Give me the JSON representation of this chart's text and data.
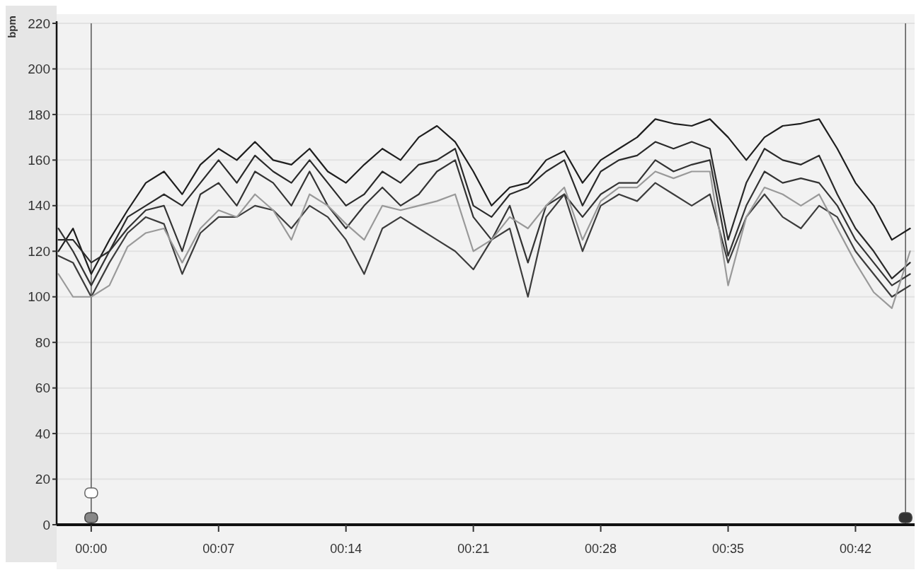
{
  "chart_data": {
    "type": "line",
    "ylabel": "bpm",
    "x": [
      -1.8,
      -1,
      0,
      1,
      2,
      3,
      4,
      5,
      6,
      7,
      8,
      9,
      10,
      11,
      12,
      13,
      14,
      15,
      16,
      17,
      18,
      19,
      20,
      21,
      22,
      23,
      24,
      25,
      26,
      27,
      28,
      29,
      30,
      31,
      32,
      33,
      34,
      35,
      36,
      37,
      38,
      39,
      40,
      41,
      42,
      43,
      44,
      45
    ],
    "series": [
      {
        "color": "#1e1e1e",
        "values": [
          120,
          130,
          110,
          125,
          138,
          150,
          155,
          145,
          158,
          165,
          160,
          168,
          160,
          158,
          165,
          155,
          150,
          158,
          165,
          160,
          170,
          175,
          168,
          155,
          140,
          148,
          150,
          160,
          164,
          150,
          160,
          165,
          170,
          178,
          176,
          175,
          178,
          170,
          160,
          170,
          175,
          176,
          178,
          165,
          150,
          140,
          125,
          130
        ]
      },
      {
        "color": "#2a2a2a",
        "values": [
          125,
          125,
          115,
          120,
          135,
          140,
          145,
          140,
          150,
          160,
          150,
          162,
          155,
          150,
          160,
          150,
          140,
          145,
          155,
          150,
          158,
          160,
          165,
          140,
          135,
          145,
          148,
          155,
          160,
          140,
          155,
          160,
          162,
          168,
          165,
          168,
          165,
          125,
          150,
          165,
          160,
          158,
          162,
          145,
          130,
          120,
          108,
          115
        ]
      },
      {
        "color": "#333333",
        "values": [
          130,
          120,
          105,
          120,
          130,
          138,
          140,
          120,
          145,
          150,
          140,
          155,
          150,
          140,
          155,
          140,
          130,
          140,
          148,
          140,
          145,
          155,
          160,
          135,
          125,
          140,
          115,
          140,
          145,
          135,
          145,
          150,
          150,
          160,
          155,
          158,
          160,
          118,
          140,
          155,
          150,
          152,
          150,
          140,
          125,
          115,
          105,
          110
        ]
      },
      {
        "color": "#3c3c3c",
        "values": [
          118,
          115,
          100,
          115,
          128,
          135,
          132,
          110,
          128,
          135,
          135,
          140,
          138,
          130,
          140,
          135,
          125,
          110,
          130,
          135,
          130,
          125,
          120,
          112,
          125,
          130,
          100,
          135,
          145,
          120,
          140,
          145,
          142,
          150,
          145,
          140,
          145,
          115,
          135,
          145,
          135,
          130,
          140,
          135,
          120,
          110,
          100,
          105
        ]
      },
      {
        "color": "#999999",
        "values": [
          110,
          100,
          100,
          105,
          122,
          128,
          130,
          115,
          130,
          138,
          135,
          145,
          138,
          125,
          145,
          140,
          132,
          125,
          140,
          138,
          140,
          142,
          145,
          120,
          125,
          135,
          130,
          140,
          148,
          125,
          142,
          148,
          148,
          155,
          152,
          155,
          155,
          105,
          135,
          148,
          145,
          140,
          145,
          130,
          115,
          102,
          95,
          120
        ]
      }
    ],
    "xlim": [
      -1.9,
      45.25
    ],
    "xticks": [
      {
        "value": 0,
        "label": "00:00"
      },
      {
        "value": 7,
        "label": "00:07"
      },
      {
        "value": 14,
        "label": "00:14"
      },
      {
        "value": 21,
        "label": "00:21"
      },
      {
        "value": 28,
        "label": "00:28"
      },
      {
        "value": 35,
        "label": "00:35"
      },
      {
        "value": 42,
        "label": "00:42"
      }
    ],
    "ylim": [
      0,
      220
    ],
    "yticks": [
      0,
      20,
      40,
      60,
      80,
      100,
      120,
      140,
      160,
      180,
      200,
      220
    ],
    "grid": "y",
    "marker": "none",
    "line_style": "solid",
    "ref_lines": [
      {
        "axis": "x",
        "value": 0,
        "color": "#555555"
      },
      {
        "axis": "x",
        "value": 44.75,
        "color": "#555555"
      }
    ]
  }
}
